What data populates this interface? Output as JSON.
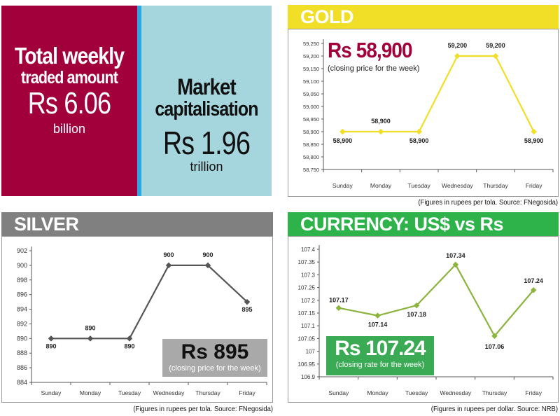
{
  "summary": {
    "traded_line1": "Total weekly",
    "traded_line2": "traded amount",
    "traded_value": "Rs 6.06",
    "traded_unit": "billion",
    "mcap_line1": "Market",
    "mcap_line2": "capitalisation",
    "mcap_value": "Rs 1.96",
    "mcap_unit": "trillion"
  },
  "gold": {
    "banner": "GOLD",
    "callout_value": "Rs 58,900",
    "callout_caption": "(closing price for the week)",
    "source": "(Figures in rupees per tola. Source: FNegosida)",
    "color": "#f1df27",
    "banner_color": "#f1df27"
  },
  "silver": {
    "banner": "SILVER",
    "callout_value": "Rs 895",
    "callout_caption": "(closing price for the week)",
    "source": "(Figures in rupees per tola. Source: FNegosida)",
    "color": "#555555",
    "banner_color": "#808080"
  },
  "currency": {
    "banner": "CURRENCY:  US$ vs Rs",
    "callout_value": "Rs 107.24",
    "callout_caption": "(closing rate for the week)",
    "source": "(Figures in rupees per dollar. Source: NRB)",
    "color": "#8cb33d",
    "banner_color": "#2db34a"
  },
  "chart_data": [
    {
      "id": "gold",
      "type": "line",
      "categories": [
        "Sunday",
        "Monday",
        "Tuesday",
        "Wednesday",
        "Thursday",
        "Friday"
      ],
      "values": [
        58900,
        58900,
        58900,
        59200,
        59200,
        58900
      ],
      "data_labels": [
        "58,900",
        "58,900",
        "58,900",
        "59,200",
        "59,200",
        "58,900"
      ],
      "yticks": [
        58750,
        58800,
        58850,
        58900,
        58950,
        59000,
        59050,
        59100,
        59150,
        59200,
        59250
      ],
      "ytick_labels": [
        "58,750",
        "58,800",
        "58,850",
        "58,900",
        "58,950",
        "59,000",
        "59,050",
        "59,100",
        "59,150",
        "59,200",
        "59,250"
      ],
      "ylim": [
        58750,
        59250
      ],
      "grid": false
    },
    {
      "id": "silver",
      "type": "line",
      "categories": [
        "Sunday",
        "Monday",
        "Tuesday",
        "Wednesday",
        "Thursday",
        "Friday"
      ],
      "values": [
        890,
        890,
        890,
        900,
        900,
        895
      ],
      "data_labels": [
        "890",
        "890",
        "890",
        "900",
        "900",
        "895"
      ],
      "yticks": [
        884,
        886,
        888,
        890,
        892,
        894,
        896,
        898,
        900,
        902
      ],
      "ytick_labels": [
        "884",
        "886",
        "888",
        "890",
        "892",
        "894",
        "896",
        "898",
        "900",
        "902"
      ],
      "ylim": [
        884,
        902
      ],
      "grid": false
    },
    {
      "id": "currency",
      "type": "line",
      "categories": [
        "Sunday",
        "Monday",
        "Tuesday",
        "Wednesday",
        "Thursday",
        "Friday"
      ],
      "values": [
        107.17,
        107.14,
        107.18,
        107.34,
        107.06,
        107.24
      ],
      "data_labels": [
        "107.17",
        "107.14",
        "107.18",
        "107.34",
        "107.06",
        "107.24"
      ],
      "yticks": [
        106.9,
        106.95,
        107,
        107.05,
        107.1,
        107.15,
        107.2,
        107.25,
        107.3,
        107.35,
        107.4
      ],
      "ytick_labels": [
        "106.9",
        "106.95",
        "107",
        "107.05",
        "107.1",
        "107.15",
        "107.2",
        "107.25",
        "107.3",
        "107.35",
        "107.4"
      ],
      "ylim": [
        106.9,
        107.4
      ],
      "grid": false
    }
  ]
}
